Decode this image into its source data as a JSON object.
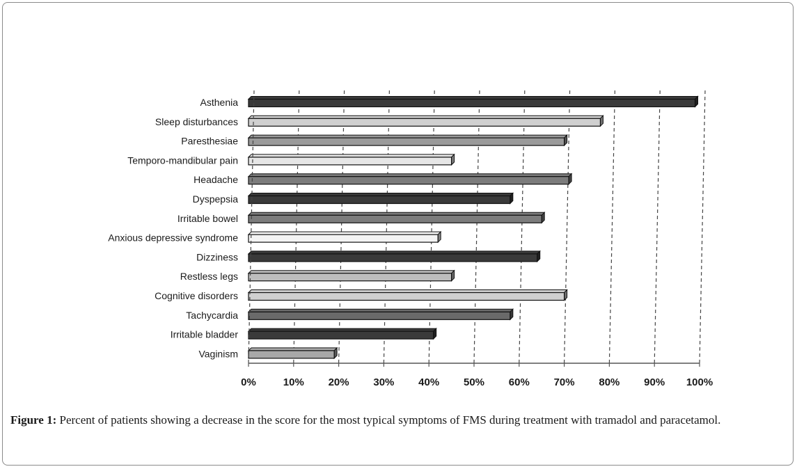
{
  "figure": {
    "caption_label": "Figure 1:",
    "caption_text": " Percent of patients showing a decrease in the score for the most typical symptoms of FMS during treatment with tramadol and paracetamol."
  },
  "chart_data": {
    "type": "bar",
    "orientation": "horizontal",
    "title": "",
    "xlabel": "",
    "ylabel": "",
    "xlim": [
      0,
      100
    ],
    "grid": "vertical dashed",
    "legend": "none",
    "ticks": [
      "0%",
      "10%",
      "20%",
      "30%",
      "40%",
      "50%",
      "60%",
      "70%",
      "80%",
      "90%",
      "100%"
    ],
    "categories": [
      "Asthenia",
      "Sleep disturbances",
      "Paresthesiae",
      "Temporo-mandibular pain",
      "Headache",
      "Dyspepsia",
      "Irritable bowel",
      "Anxious depressive syndrome",
      "Dizziness",
      "Restless legs",
      "Cognitive disorders",
      "Tachycardia",
      "Irritable bladder",
      "Vaginism"
    ],
    "values": [
      99,
      78,
      70,
      45,
      71,
      58,
      65,
      42,
      64,
      45,
      70,
      58,
      41,
      19
    ],
    "bar_colors": [
      "#3a3a3a",
      "#d0d0d0",
      "#9a9a9a",
      "#e6e6e6",
      "#7c7c7c",
      "#3a3a3a",
      "#7c7c7c",
      "#f4f4f4",
      "#3a3a3a",
      "#bdbdbd",
      "#d0d0d0",
      "#6a6a6a",
      "#3a3a3a",
      "#a8a8a8"
    ]
  }
}
